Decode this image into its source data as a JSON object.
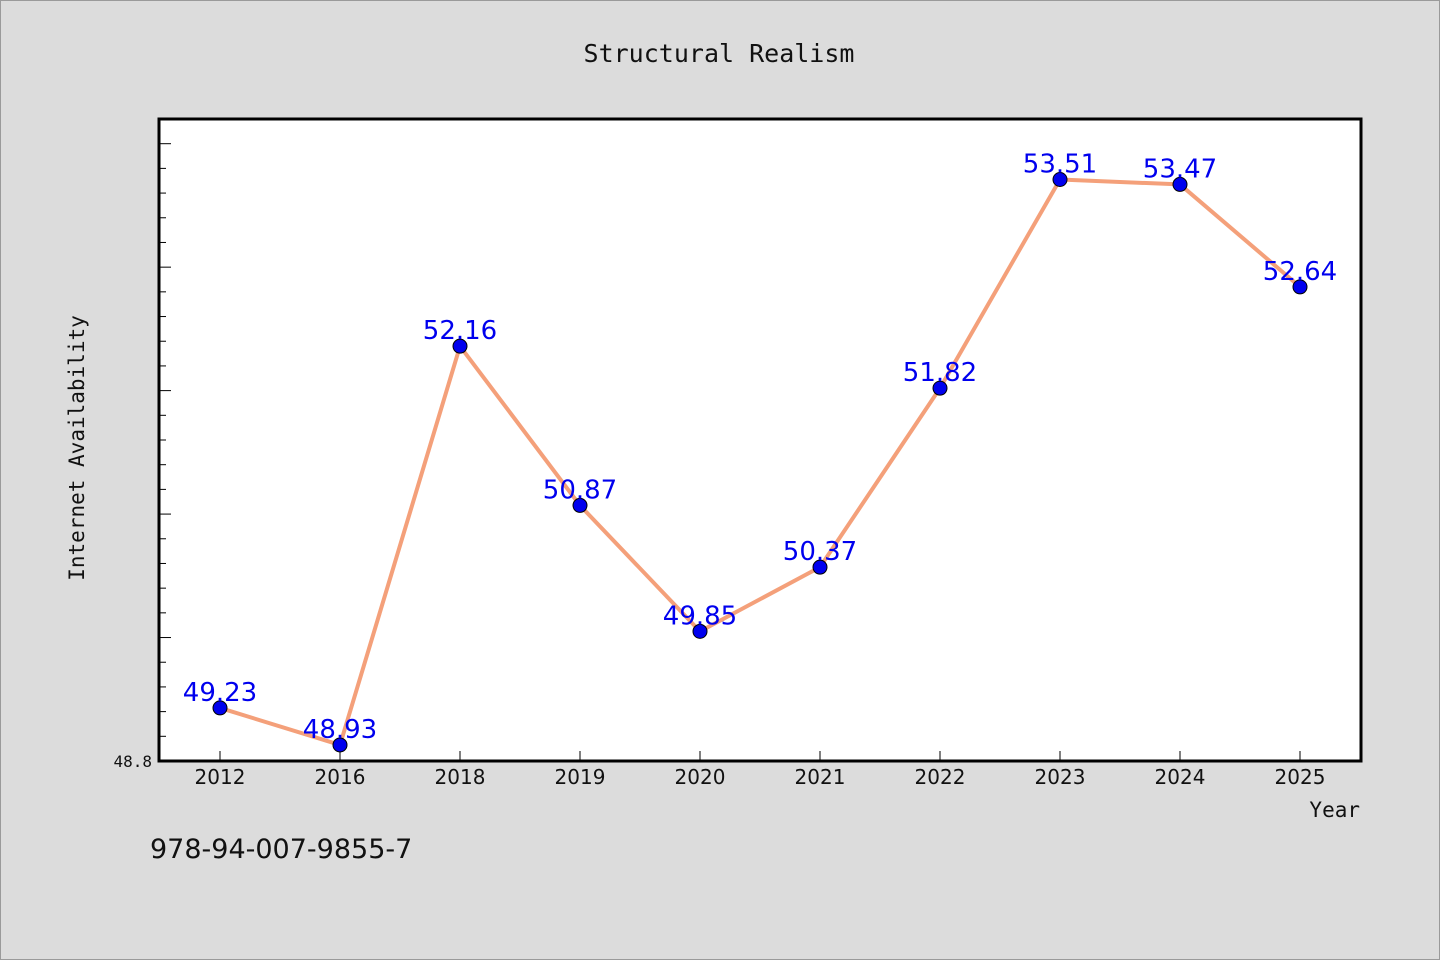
{
  "chart_data": {
    "type": "line",
    "title": "Structural Realism",
    "xlabel": "Year",
    "ylabel": "Internet Availability",
    "categories": [
      "2012",
      "2016",
      "2018",
      "2019",
      "2020",
      "2021",
      "2022",
      "2023",
      "2024",
      "2025"
    ],
    "series": [
      {
        "values": [
          49.23,
          48.93,
          52.16,
          50.87,
          49.85,
          50.37,
          51.82,
          53.51,
          53.47,
          52.64
        ],
        "labels": [
          "49.23",
          "48.93",
          "52.16",
          "50.87",
          "49.85",
          "50.37",
          "51.82",
          "53.51",
          "53.47",
          "52.64"
        ],
        "line_color": "#f4a07a",
        "marker_color": "#0000ee",
        "label_color": "#0000ee"
      }
    ],
    "ylim": [
      48.8,
      54.0
    ],
    "y_tick_labels": [
      "48.8"
    ],
    "grid": false,
    "legend": "none"
  },
  "footer": {
    "isbn": "978-94-007-9855-7"
  }
}
